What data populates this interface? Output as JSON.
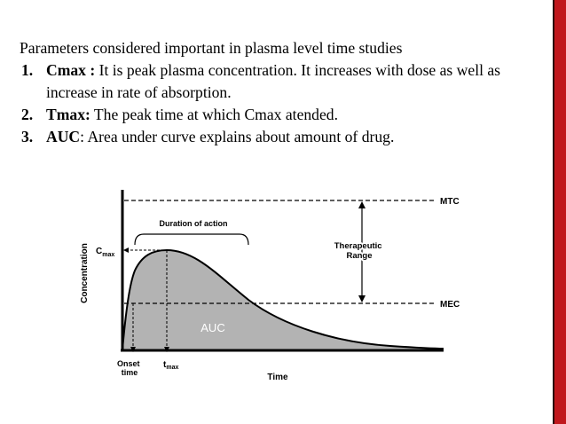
{
  "slide": {
    "intro": "Parameters considered important in plasma level time studies",
    "items": [
      {
        "number": "1.",
        "term": "Cmax :",
        "text": " It is peak plasma concentration. It increases with dose as well as increase in rate of absorption."
      },
      {
        "number": "2.",
        "term": "Tmax:",
        "text": " The peak time at which Cmax  atended."
      },
      {
        "number": "3.",
        "term": "AUC",
        "text": ": Area under curve explains about amount of drug."
      }
    ]
  },
  "figure": {
    "y_axis_label": "Concentration",
    "x_axis_label": "Time",
    "mtc_label": "MTC",
    "mec_label": "MEC",
    "duration_label": "Duration of action",
    "therapeutic_label_line1": "Therapeutic",
    "therapeutic_label_line2": "Range",
    "cmax_label_main": "C",
    "cmax_label_sub": "max",
    "tmax_label_main": "t",
    "tmax_label_sub": "max",
    "onset_label_line1": "Onset",
    "onset_label_line2": "time",
    "auc_label": "AUC",
    "colors": {
      "fill": "#b3b3b3",
      "accent": "#c0181d",
      "ink": "#000000"
    }
  }
}
